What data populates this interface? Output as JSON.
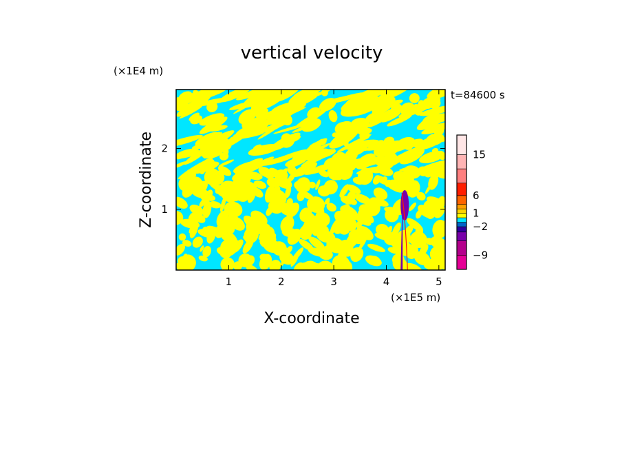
{
  "chart_data": {
    "type": "heatmap",
    "title": "vertical velocity",
    "xlabel": "X-coordinate",
    "ylabel": "Z-coordinate",
    "x_unit_label": "(×1E5 m)",
    "y_unit_label": "(×1E4 m)",
    "time_label": "t=84600 s",
    "xlim": [
      0,
      5.12
    ],
    "ylim": [
      0,
      2.97
    ],
    "x_ticks": [
      "1",
      "2",
      "3",
      "4",
      "5"
    ],
    "x_tick_values": [
      1,
      2,
      3,
      4,
      5
    ],
    "y_ticks": [
      "1",
      "2"
    ],
    "y_tick_values": [
      1,
      2
    ],
    "colorbar": {
      "levels_bottom_to_top": [
        -12,
        -9,
        -6,
        -4,
        -2,
        -1,
        0,
        1,
        2,
        4,
        6,
        9,
        12,
        15,
        18,
        21
      ],
      "colors_bottom_to_top": [
        "#e60096",
        "#b4008c",
        "#7800aa",
        "#2d00a0",
        "#0064c8",
        "#00e6ff",
        "#ffff00",
        "#ffd200",
        "#ffa000",
        "#ff6400",
        "#ff1e00",
        "#ff8080",
        "#ffb4b4",
        "#ffe6e6"
      ],
      "labels": [
        "15",
        "6",
        "1",
        "−2",
        "−9"
      ],
      "label_values": [
        15,
        6,
        1,
        -2,
        -9
      ]
    },
    "fill_colors": {
      "positive": "#ffff00",
      "negative": "#00e6ff",
      "strong_negative": "#7800aa",
      "strong_positive": "#ff1e00"
    },
    "strong_feature_x": 4.35
  }
}
